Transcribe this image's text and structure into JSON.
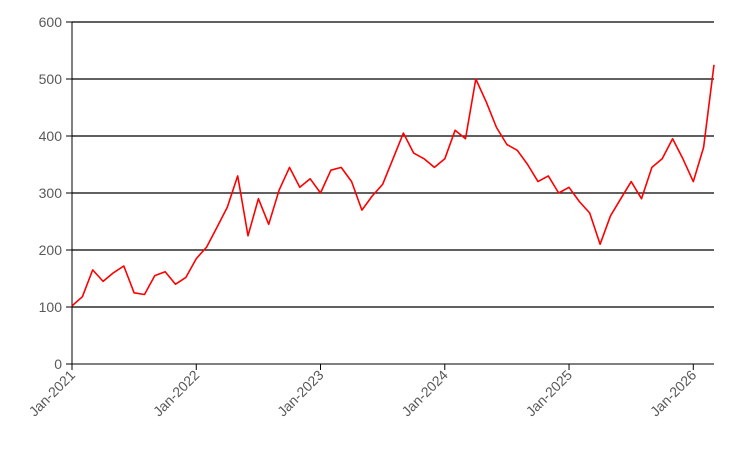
{
  "chart_data": {
    "type": "line",
    "title": "",
    "xlabel": "",
    "ylabel": "",
    "ylim": [
      0,
      600
    ],
    "yticks": [
      0,
      100,
      200,
      300,
      400,
      500,
      600
    ],
    "xlim": [
      "2021-01",
      "2026-03"
    ],
    "xticks": [
      {
        "date": "2021-01",
        "label": "Jan-2021"
      },
      {
        "date": "2022-01",
        "label": "Jan-2022"
      },
      {
        "date": "2023-01",
        "label": "Jan-2023"
      },
      {
        "date": "2024-01",
        "label": "Jan-2024"
      },
      {
        "date": "2025-01",
        "label": "Jan-2025"
      },
      {
        "date": "2026-01",
        "label": "Jan-2026"
      }
    ],
    "grid": {
      "horizontal": true,
      "vertical": false
    },
    "legend": "none",
    "series": [
      {
        "color": "#ff0000",
        "x": [
          "2021-01",
          "2021-02",
          "2021-03",
          "2021-04",
          "2021-05",
          "2021-06",
          "2021-07",
          "2021-08",
          "2021-09",
          "2021-10",
          "2021-11",
          "2021-12",
          "2022-01",
          "2022-02",
          "2022-03",
          "2022-04",
          "2022-05",
          "2022-06",
          "2022-07",
          "2022-08",
          "2022-09",
          "2022-10",
          "2022-11",
          "2022-12",
          "2023-01",
          "2023-02",
          "2023-03",
          "2023-04",
          "2023-05",
          "2023-06",
          "2023-07",
          "2023-08",
          "2023-09",
          "2023-10",
          "2023-11",
          "2023-12",
          "2024-01",
          "2024-02",
          "2024-03",
          "2024-04",
          "2024-05",
          "2024-06",
          "2024-07",
          "2024-08",
          "2024-09",
          "2024-10",
          "2024-11",
          "2024-12",
          "2025-01",
          "2025-02",
          "2025-03",
          "2025-04",
          "2025-05",
          "2025-06",
          "2025-07",
          "2025-08",
          "2025-09",
          "2025-10",
          "2025-11",
          "2025-12",
          "2026-01",
          "2026-02",
          "2026-03"
        ],
        "values": [
          102,
          118,
          165,
          145,
          160,
          172,
          125,
          122,
          155,
          162,
          140,
          152,
          185,
          205,
          240,
          275,
          330,
          225,
          290,
          245,
          305,
          345,
          310,
          325,
          300,
          340,
          345,
          320,
          270,
          295,
          315,
          360,
          405,
          370,
          360,
          345,
          360,
          410,
          395,
          500,
          460,
          415,
          385,
          375,
          350,
          320,
          330,
          300,
          310,
          285,
          265,
          210,
          260,
          290,
          320,
          290,
          345,
          360,
          395,
          360,
          320,
          380,
          525
        ]
      }
    ]
  }
}
